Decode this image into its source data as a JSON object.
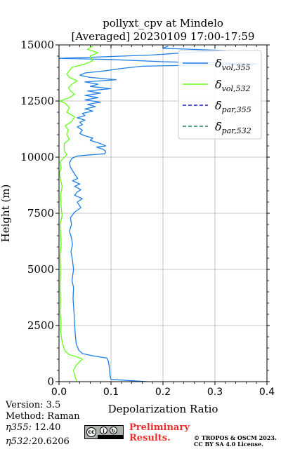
{
  "chart_data": {
    "type": "line",
    "title": "pollyxt_cpv at Mindelo",
    "subtitle": "[Averaged] 20230109 17:00-17:59",
    "xlabel": "Depolarization Ratio",
    "ylabel": "Height (m)",
    "xlim": [
      0,
      0.4
    ],
    "ylim": [
      0,
      15000
    ],
    "xticks": [
      "0.0",
      "0.1",
      "0.2",
      "0.3",
      "0.4"
    ],
    "yticks": [
      "0",
      "2500",
      "5000",
      "7500",
      "10000",
      "12500",
      "15000"
    ],
    "grid": true,
    "legend_position": "top-right",
    "legend": [
      {
        "base": "δ",
        "sub": "vol,355",
        "style": "solid",
        "color": "#1f7fe6"
      },
      {
        "base": "δ",
        "sub": "vol,532",
        "style": "solid",
        "color": "#66ff19"
      },
      {
        "base": "δ",
        "sub": "par,355",
        "style": "dashed",
        "color": "#1f1fbf"
      },
      {
        "base": "δ",
        "sub": "par,532",
        "style": "dashed",
        "color": "#1f7f4c"
      }
    ],
    "series": [
      {
        "name": "δvol,355",
        "color": "#1f7fe6",
        "points": [
          [
            0.17,
            0
          ],
          [
            0.1,
            100
          ],
          [
            0.098,
            300
          ],
          [
            0.097,
            600
          ],
          [
            0.095,
            900
          ],
          [
            0.092,
            1050
          ],
          [
            0.065,
            1150
          ],
          [
            0.045,
            1250
          ],
          [
            0.038,
            1400
          ],
          [
            0.033,
            1700
          ],
          [
            0.031,
            2200
          ],
          [
            0.029,
            3000
          ],
          [
            0.027,
            3700
          ],
          [
            0.028,
            4200
          ],
          [
            0.025,
            4500
          ],
          [
            0.028,
            5000
          ],
          [
            0.026,
            5400
          ],
          [
            0.023,
            5800
          ],
          [
            0.026,
            6100
          ],
          [
            0.024,
            6400
          ],
          [
            0.02,
            6700
          ],
          [
            0.024,
            7000
          ],
          [
            0.022,
            7300
          ],
          [
            0.03,
            7550
          ],
          [
            0.042,
            7750
          ],
          [
            0.035,
            8000
          ],
          [
            0.045,
            8150
          ],
          [
            0.03,
            8300
          ],
          [
            0.035,
            8450
          ],
          [
            0.042,
            8550
          ],
          [
            0.03,
            8700
          ],
          [
            0.04,
            8800
          ],
          [
            0.026,
            8950
          ],
          [
            0.036,
            9050
          ],
          [
            0.03,
            9250
          ],
          [
            0.022,
            9550
          ],
          [
            0.02,
            9750
          ],
          [
            0.025,
            9950
          ],
          [
            0.035,
            10050
          ],
          [
            0.06,
            10100
          ],
          [
            0.088,
            10150
          ],
          [
            0.09,
            10250
          ],
          [
            0.085,
            10350
          ],
          [
            0.072,
            10450
          ],
          [
            0.09,
            10500
          ],
          [
            0.08,
            10600
          ],
          [
            0.06,
            10750
          ],
          [
            0.065,
            10850
          ],
          [
            0.05,
            10950
          ],
          [
            0.04,
            11050
          ],
          [
            0.045,
            11200
          ],
          [
            0.035,
            11350
          ],
          [
            0.045,
            11450
          ],
          [
            0.04,
            11550
          ],
          [
            0.05,
            11650
          ],
          [
            0.035,
            11750
          ],
          [
            0.05,
            11850
          ],
          [
            0.045,
            11950
          ],
          [
            0.065,
            12050
          ],
          [
            0.05,
            12150
          ],
          [
            0.07,
            12250
          ],
          [
            0.055,
            12350
          ],
          [
            0.08,
            12450
          ],
          [
            0.05,
            12550
          ],
          [
            0.075,
            12650
          ],
          [
            0.05,
            12750
          ],
          [
            0.08,
            12850
          ],
          [
            0.055,
            12950
          ],
          [
            0.1,
            13050
          ],
          [
            0.06,
            13150
          ],
          [
            0.075,
            13250
          ],
          [
            0.05,
            13350
          ],
          [
            0.11,
            13450
          ],
          [
            0.06,
            13550
          ],
          [
            0.04,
            13650
          ],
          [
            0.05,
            13750
          ],
          [
            0.09,
            13850
          ],
          [
            0.12,
            13950
          ],
          [
            0.16,
            14050
          ],
          [
            0.38,
            14150
          ],
          [
            0.2,
            14250
          ],
          [
            0.1,
            14350
          ],
          [
            0.0,
            14400
          ],
          [
            0.06,
            14450
          ],
          [
            0.18,
            14550
          ],
          [
            0.24,
            14650
          ],
          [
            0.32,
            14750
          ],
          [
            0.2,
            14850
          ],
          [
            0.21,
            14950
          ]
        ]
      },
      {
        "name": "δvol,532",
        "color": "#66ff19",
        "points": [
          [
            0.035,
            0
          ],
          [
            0.032,
            150
          ],
          [
            0.03,
            300
          ],
          [
            0.028,
            500
          ],
          [
            0.032,
            700
          ],
          [
            0.038,
            850
          ],
          [
            0.045,
            1000
          ],
          [
            0.035,
            1100
          ],
          [
            0.02,
            1200
          ],
          [
            0.012,
            1350
          ],
          [
            0.008,
            1600
          ],
          [
            0.005,
            1900
          ],
          [
            0.003,
            2300
          ],
          [
            0.004,
            2600
          ],
          [
            0.002,
            3100
          ],
          [
            0.003,
            3600
          ],
          [
            0.002,
            4200
          ],
          [
            0.003,
            5000
          ],
          [
            0.002,
            5600
          ],
          [
            0.004,
            6100
          ],
          [
            0.003,
            6600
          ],
          [
            0.002,
            7000
          ],
          [
            0.006,
            7400
          ],
          [
            0.004,
            7800
          ],
          [
            0.003,
            8300
          ],
          [
            0.006,
            8700
          ],
          [
            0.003,
            9000
          ],
          [
            0.001,
            9300
          ],
          [
            0.004,
            9500
          ],
          [
            0.002,
            9800
          ],
          [
            0.015,
            10100
          ],
          [
            0.01,
            10300
          ],
          [
            0.01,
            10600
          ],
          [
            0.02,
            10800
          ],
          [
            0.015,
            11000
          ],
          [
            0.018,
            11200
          ],
          [
            0.012,
            11400
          ],
          [
            0.025,
            11600
          ],
          [
            0.03,
            11800
          ],
          [
            0.015,
            12000
          ],
          [
            0.02,
            12200
          ],
          [
            0.012,
            12400
          ],
          [
            0.002,
            12500
          ],
          [
            0.02,
            12650
          ],
          [
            0.03,
            12800
          ],
          [
            0.022,
            12950
          ],
          [
            0.018,
            13100
          ],
          [
            0.025,
            13250
          ],
          [
            0.035,
            13400
          ],
          [
            0.02,
            13550
          ],
          [
            0.015,
            13700
          ],
          [
            0.02,
            13850
          ],
          [
            0.025,
            14000
          ],
          [
            0.05,
            14150
          ],
          [
            0.065,
            14300
          ],
          [
            0.06,
            14500
          ],
          [
            0.075,
            14650
          ],
          [
            0.055,
            14800
          ],
          [
            0.065,
            14950
          ]
        ]
      }
    ]
  },
  "footer": {
    "version": "Version: 3.5",
    "method": "Method: Raman",
    "eta355_label": "η355:",
    "eta355_value": "12.40",
    "eta532_label": "η532:",
    "eta532_value": "20.6206",
    "license_badge": "cc by sa",
    "preliminary_line1": "Preliminary",
    "preliminary_line2": "Results.",
    "copyright_line1": "© TROPOS & OSCM 2023.",
    "copyright_line2": "CC BY SA 4.0 License."
  }
}
